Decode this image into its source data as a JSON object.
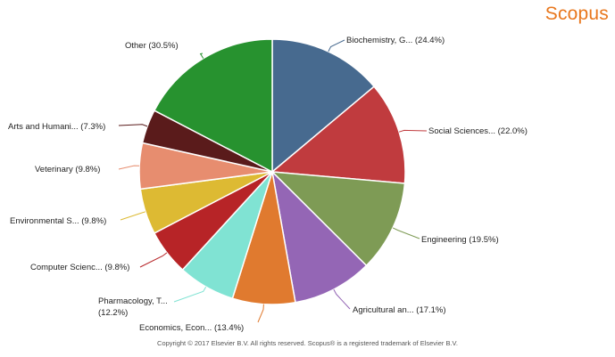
{
  "brand": "Scopus",
  "copyright": "Copyright © 2017 Elsevier B.V. All rights reserved. Scopus® is a registered trademark of Elsevier B.V.",
  "chart_data": {
    "type": "pie",
    "title": "",
    "slices": [
      {
        "label": "Biochemistry, G... (24.4%)",
        "value": 24.4,
        "color": "#476a8f"
      },
      {
        "label": "Social Sciences... (22.0%)",
        "value": 22.0,
        "color": "#c03b3e"
      },
      {
        "label": "Engineering (19.5%)",
        "value": 19.5,
        "color": "#7e9b55"
      },
      {
        "label": "Agricultural an... (17.1%)",
        "value": 17.1,
        "color": "#9466b5"
      },
      {
        "label": "Economics, Econ... (13.4%)",
        "value": 13.4,
        "color": "#e07a2f"
      },
      {
        "label": "Pharmacology, T... (12.2%)",
        "value": 12.2,
        "color": "#80e3d3"
      },
      {
        "label": "Computer Scienc... (9.8%)",
        "value": 9.8,
        "color": "#b72427"
      },
      {
        "label": "Environmental S... (9.8%)",
        "value": 9.8,
        "color": "#ddba33"
      },
      {
        "label": "Veterinary (9.8%)",
        "value": 9.8,
        "color": "#e78d6f"
      },
      {
        "label": "Arts and Humani... (7.3%)",
        "value": 7.3,
        "color": "#5a1b1b"
      },
      {
        "label": "Other (30.5%)",
        "value": 30.5,
        "color": "#27922f"
      }
    ],
    "start_angle": "12 o'clock",
    "direction": "clockwise",
    "legend": "none (labels beside slices)"
  }
}
